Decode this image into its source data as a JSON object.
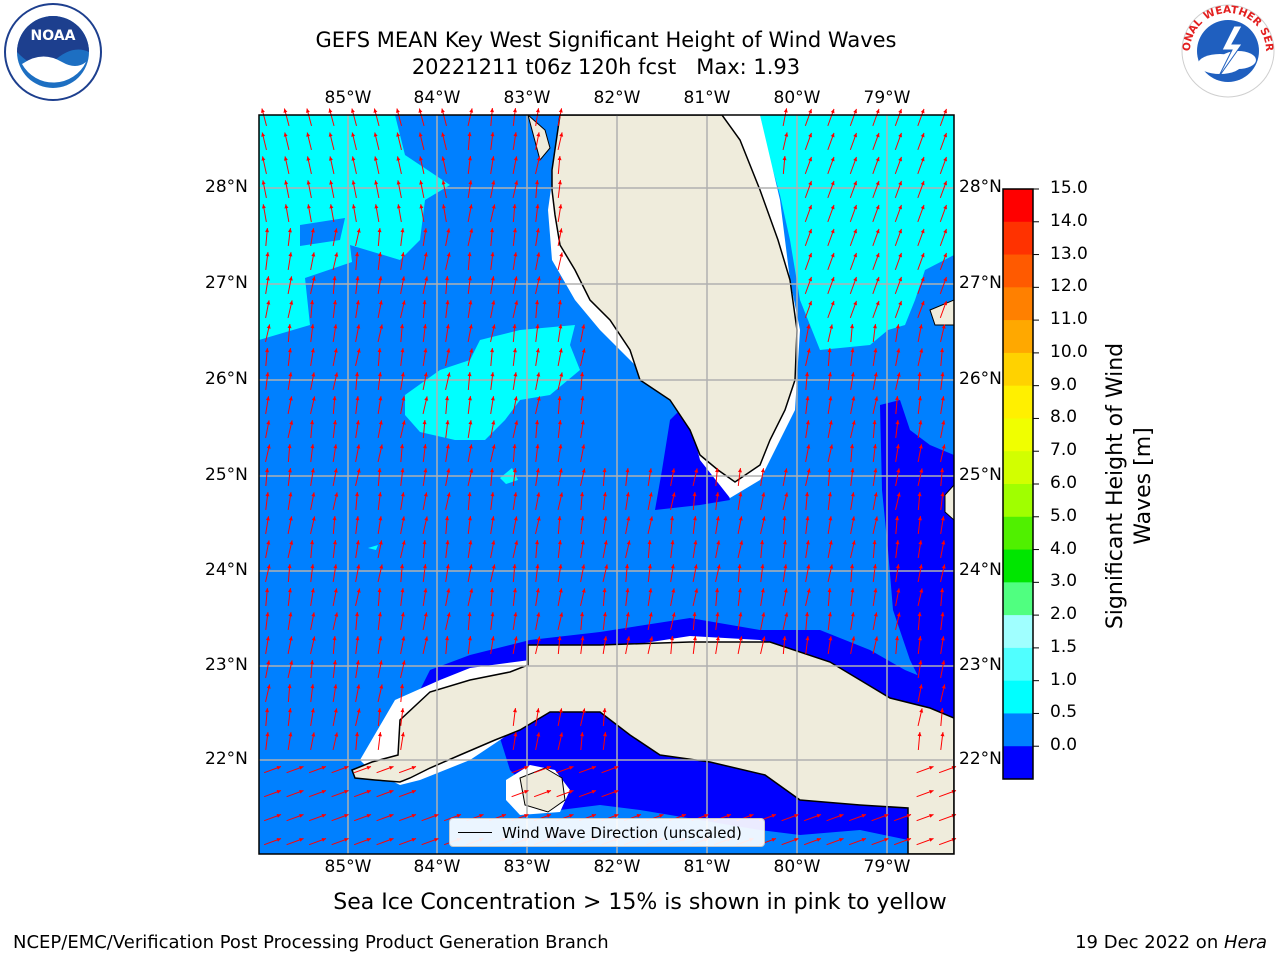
{
  "header": {
    "title_line1": "GEFS MEAN Key West Significant Height of Wind Waves",
    "title_line2": "20221211 t06z 120h fcst   Max: 1.93"
  },
  "logos": {
    "left": "NOAA",
    "right": "NATIONAL WEATHER SERVICE"
  },
  "map": {
    "lon_labels": [
      "85°W",
      "84°W",
      "83°W",
      "82°W",
      "81°W",
      "80°W",
      "79°W"
    ],
    "lat_labels": [
      "28°N",
      "27°N",
      "26°N",
      "25°N",
      "24°N",
      "23°N",
      "22°N"
    ],
    "colors": {
      "band_0_0_5": "#0000ff",
      "band_0_5_1_0": "#0080ff",
      "band_1_0_1_5": "#00ffff",
      "land": "#efecdc",
      "arrow": "#ff0000",
      "grid": "#b0b0b0"
    }
  },
  "legend": {
    "label": "Wind Wave Direction (unscaled)"
  },
  "colorbar": {
    "labels": [
      "15.0",
      "14.0",
      "13.0",
      "12.0",
      "11.0",
      "10.0",
      "9.0",
      "8.0",
      "7.0",
      "6.0",
      "5.0",
      "4.0",
      "3.0",
      "2.0",
      "1.5",
      "1.0",
      "0.5",
      "0.0"
    ],
    "colors_top_to_bottom": [
      "#ff0000",
      "#ff3200",
      "#ff5a00",
      "#ff8000",
      "#ffa800",
      "#ffd200",
      "#fff000",
      "#f0ff00",
      "#d2ff00",
      "#a0ff00",
      "#50f000",
      "#00e600",
      "#50ff80",
      "#a0ffff",
      "#50ffff",
      "#00ffff",
      "#0080ff",
      "#0000ff"
    ],
    "title_line1": "Significant Height of Wind",
    "title_line2": "Waves [m]"
  },
  "notes": {
    "sea_ice": "Sea Ice Concentration > 15% is shown in pink to yellow",
    "footer_left": "NCEP/EMC/Verification Post Processing Product Generation Branch",
    "footer_right_prefix": "19 Dec 2022 on ",
    "footer_right_host": "Hera"
  }
}
